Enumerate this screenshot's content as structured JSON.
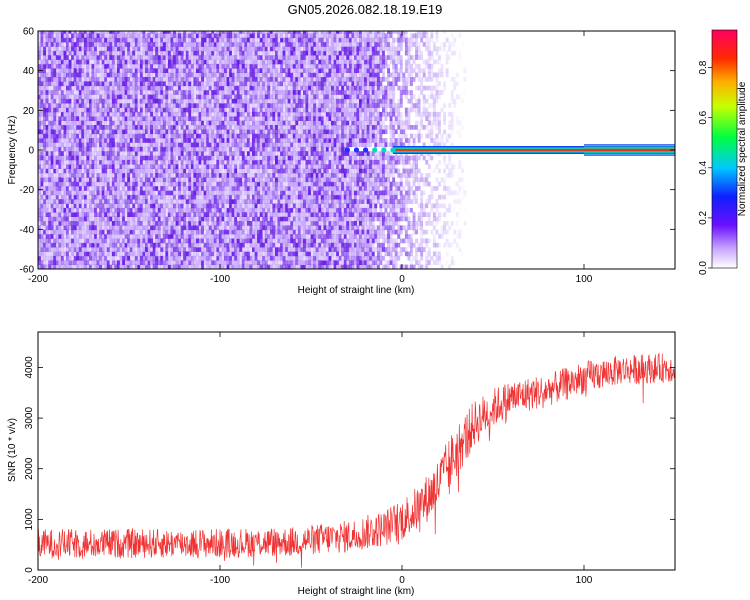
{
  "figure_title": "GN05.2026.082.18.19.E19",
  "colors": {
    "snr_line": "#f03232",
    "spec_purple": "#6a1fe6",
    "frame": "#000000"
  },
  "chart_data": [
    {
      "type": "heatmap",
      "title": "GN05.2026.082.18.19.E19",
      "xlabel": "Height of straight line (km)",
      "ylabel": "Frequency (Hz)",
      "xlim": [
        -200,
        150
      ],
      "ylim": [
        -60,
        60
      ],
      "xticks": [
        -200,
        -100,
        0,
        100
      ],
      "yticks": [
        -60,
        -40,
        -20,
        0,
        20,
        40,
        60
      ],
      "x_tick_labels": [
        "-200",
        "-100",
        "0",
        "100"
      ],
      "y_tick_labels": [
        "-60",
        "-40",
        "-20",
        "0",
        "20",
        "40",
        "60"
      ],
      "colorbar": {
        "label": "Normalized spectral amplitude",
        "range": [
          0.0,
          0.95
        ],
        "ticks": [
          0.0,
          0.2,
          0.4,
          0.6,
          0.8
        ],
        "tick_labels": [
          "0.0",
          "0.2",
          "0.4",
          "0.6",
          "0.8"
        ]
      },
      "features": {
        "noise_region_x": [
          -200,
          -20
        ],
        "noise_fade_x": [
          -20,
          25
        ],
        "signal_line_frequency": 0,
        "signal_start_x": -30,
        "signal_end_x": 150,
        "signal_peak_amplitude": 0.9
      }
    },
    {
      "type": "line",
      "xlabel": "Height of straight line (km)",
      "ylabel": "SNR (10 * v/v)",
      "xlim": [
        -200,
        150
      ],
      "ylim": [
        0,
        4700
      ],
      "xticks": [
        -200,
        -100,
        0,
        100
      ],
      "yticks": [
        0,
        1000,
        2000,
        3000,
        4000
      ],
      "x_tick_labels": [
        "-200",
        "-100",
        "0",
        "100"
      ],
      "y_tick_labels": [
        "0",
        "1000",
        "2000",
        "3000",
        "4000"
      ],
      "series": [
        {
          "name": "SNR",
          "x": [
            -200,
            -150,
            -100,
            -60,
            -30,
            -10,
            0,
            10,
            20,
            30,
            40,
            50,
            60,
            80,
            100,
            120,
            150
          ],
          "y_mean": [
            520,
            520,
            530,
            560,
            660,
            820,
            1000,
            1250,
            1700,
            2350,
            2900,
            3200,
            3400,
            3550,
            3800,
            3950,
            4000
          ],
          "y_spread": [
            450,
            450,
            450,
            450,
            500,
            550,
            650,
            700,
            800,
            850,
            700,
            600,
            550,
            500,
            500,
            450,
            450
          ]
        }
      ]
    }
  ]
}
